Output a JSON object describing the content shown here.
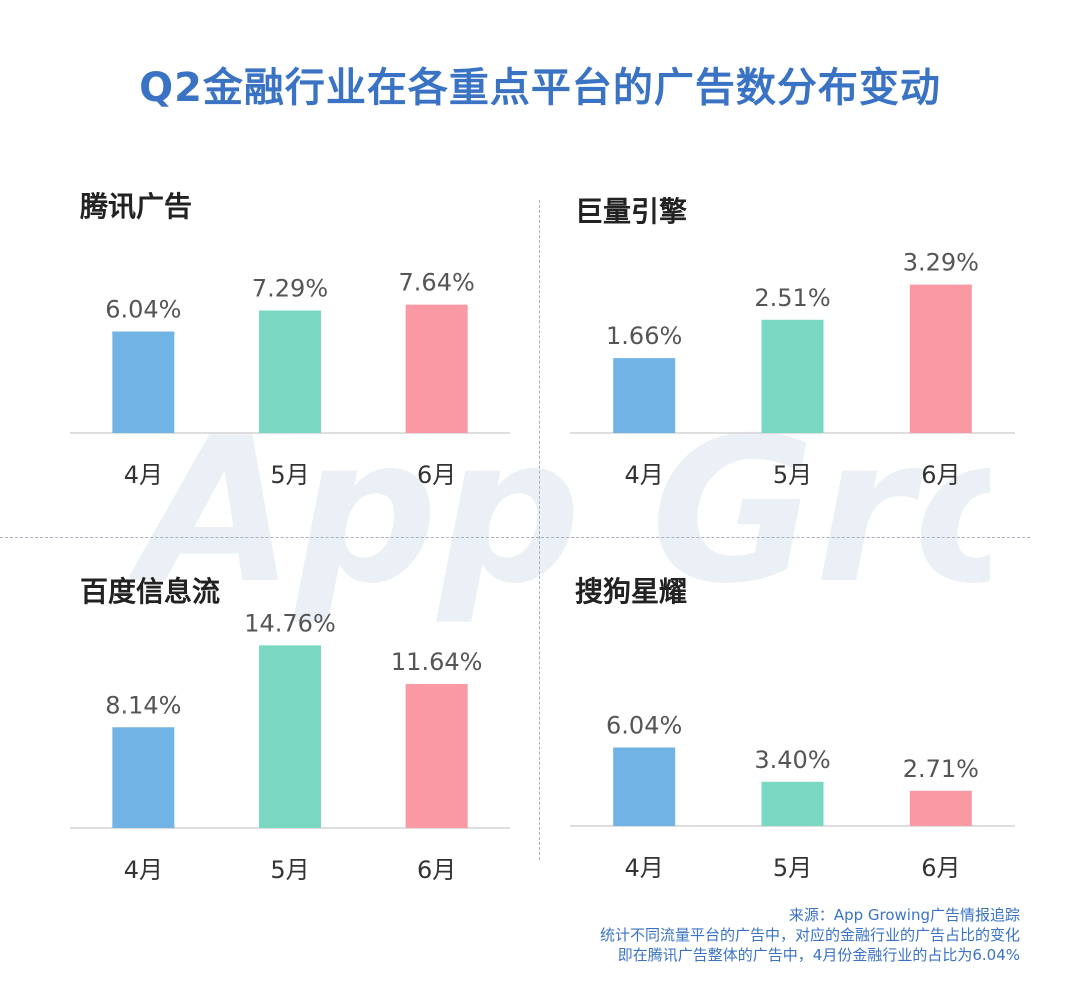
{
  "title": "Q2金融行业在各重点平台的广告数分布变动",
  "watermark_text": "App Growing",
  "colors": {
    "title": "#3a73c4",
    "bar_april": "#72b3e6",
    "bar_may": "#79d7c2",
    "bar_june": "#fa99a4",
    "label": "#555555",
    "source": "#3a73c4"
  },
  "chart_data": [
    {
      "type": "bar",
      "title": "腾讯广告",
      "categories": [
        "4月",
        "5月",
        "6月"
      ],
      "values": [
        6.04,
        7.29,
        7.64
      ],
      "value_labels": [
        "6.04%",
        "7.29%",
        "7.64%"
      ],
      "ylim": [
        0,
        10
      ]
    },
    {
      "type": "bar",
      "title": "巨量引擎",
      "categories": [
        "4月",
        "5月",
        "6月"
      ],
      "values": [
        1.66,
        2.51,
        3.29
      ],
      "value_labels": [
        "1.66%",
        "2.51%",
        "3.29%"
      ],
      "ylim": [
        0,
        4.5
      ]
    },
    {
      "type": "bar",
      "title": "百度信息流",
      "categories": [
        "4月",
        "5月",
        "6月"
      ],
      "values": [
        8.14,
        14.76,
        11.64
      ],
      "value_labels": [
        "8.14%",
        "14.76%",
        "11.64%"
      ],
      "ylim": [
        0,
        16
      ]
    },
    {
      "type": "bar",
      "title": "搜狗星耀",
      "categories": [
        "4月",
        "5月",
        "6月"
      ],
      "values": [
        6.04,
        3.4,
        2.71
      ],
      "value_labels": [
        "6.04%",
        "3.40%",
        "2.71%"
      ],
      "ylim": [
        0,
        12
      ]
    }
  ],
  "source_lines": [
    "来源：App Growing广告情报追踪",
    "统计不同流量平台的广告中，对应的金融行业的广告占比的变化",
    "即在腾讯广告整体的广告中，4月份金融行业的占比为6.04%"
  ]
}
